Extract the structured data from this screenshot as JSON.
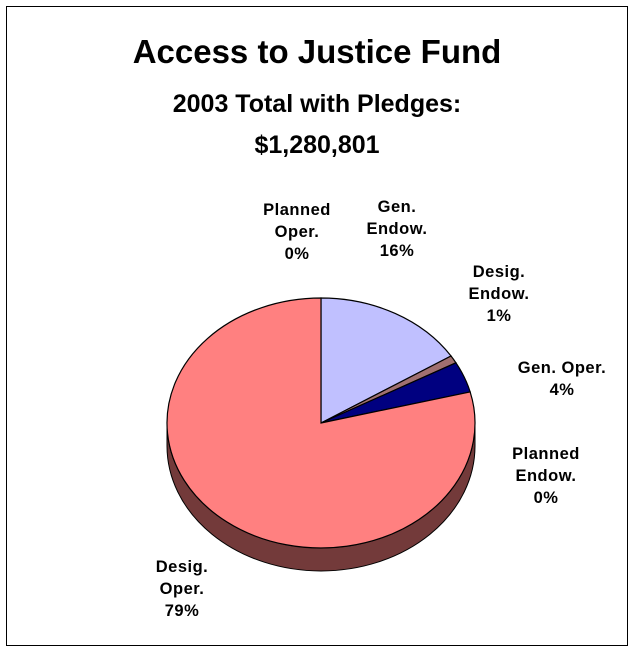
{
  "chart_data": {
    "type": "pie",
    "title": "Access to Justice Fund",
    "subtitle_line1": "2003 Total with Pledges:",
    "subtitle_line2": "$1,280,801",
    "slices": [
      {
        "label": [
          "Gen.",
          "Endow."
        ],
        "percent_label": "16%",
        "value": 16,
        "color": "#c0c0ff"
      },
      {
        "label": [
          "Desig.",
          "Endow."
        ],
        "percent_label": "1%",
        "value": 1,
        "color": "#a07070"
      },
      {
        "label": [
          "Gen. Oper."
        ],
        "percent_label": "4%",
        "value": 4,
        "color": "#000080"
      },
      {
        "label": [
          "Planned",
          "Endow."
        ],
        "percent_label": "0%",
        "value": 0,
        "color": "#ffffff"
      },
      {
        "label": [
          "Desig.",
          "Oper."
        ],
        "percent_label": "79%",
        "value": 79,
        "color": "#ff8080"
      },
      {
        "label": [
          "Planned",
          "Oper."
        ],
        "percent_label": "0%",
        "value": 0,
        "color": "#ffffff"
      }
    ],
    "legend": "none",
    "style": "3d-pie"
  }
}
